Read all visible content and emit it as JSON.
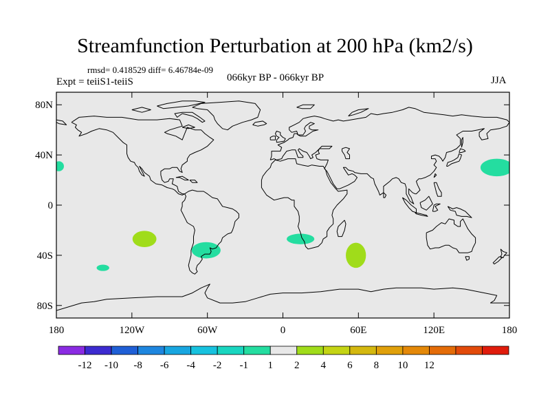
{
  "header": {
    "title": "Streamfunction Perturbation at 200 hPa (km2/s)",
    "stats": "rmsd= 0.418529  diff= 6.46784e-09",
    "experiment": "Expt = teiiS1-teiiS",
    "period": "066kyr BP - 066kyr BP",
    "season": "JJA"
  },
  "chart_data": {
    "type": "heatmap",
    "projection": "cylindrical-equidistant",
    "title": "Streamfunction Perturbation at 200 hPa (km2/s)",
    "xlim": [
      -180,
      180
    ],
    "ylim": [
      -90,
      90
    ],
    "x_ticks": [
      {
        "value": -180,
        "label": "180"
      },
      {
        "value": -120,
        "label": "120W"
      },
      {
        "value": -60,
        "label": "60W"
      },
      {
        "value": 0,
        "label": "0"
      },
      {
        "value": 60,
        "label": "60E"
      },
      {
        "value": 120,
        "label": "120E"
      },
      {
        "value": 180,
        "label": "180"
      }
    ],
    "y_ticks": [
      {
        "value": 80,
        "label": "80N"
      },
      {
        "value": 40,
        "label": "40N"
      },
      {
        "value": 0,
        "label": "0"
      },
      {
        "value": -40,
        "label": "40S"
      },
      {
        "value": -80,
        "label": "80S"
      }
    ],
    "background_color": "#e8e8e8",
    "colorbar": {
      "colors": [
        "#8a2be2",
        "#3c2bd0",
        "#1f5fd6",
        "#1e86df",
        "#18a6e0",
        "#17c2df",
        "#19d6c0",
        "#24dda0",
        "#e8e8e8",
        "#a0dc1a",
        "#c4d414",
        "#d4b80f",
        "#e0a00a",
        "#e48808",
        "#e46c08",
        "#e24a0a",
        "#e01c0c"
      ],
      "labels": [
        "-12",
        "-10",
        "-8",
        "-6",
        "-4",
        "-2",
        "-1",
        "1",
        "2",
        "4",
        "6",
        "8",
        "10",
        "12"
      ]
    },
    "anomalies": [
      {
        "lon": -110,
        "lat": -27,
        "rlon": 9.5,
        "rlat": 6.5,
        "level": "1 to 2",
        "color": "#a0dc1a"
      },
      {
        "lon": -143,
        "lat": -50,
        "rlon": 5,
        "rlat": 2.5,
        "level": "-2 to -1",
        "color": "#24dda0"
      },
      {
        "lon": -61,
        "lat": -36,
        "rlon": 11.5,
        "rlat": 6.5,
        "level": "-2 to -1",
        "color": "#24dda0"
      },
      {
        "lon": 14,
        "lat": -27,
        "rlon": 11,
        "rlat": 4.2,
        "level": "-2 to -1",
        "color": "#24dda0"
      },
      {
        "lon": 58,
        "lat": -40,
        "rlon": 8,
        "rlat": 10,
        "level": "1 to 2",
        "color": "#a0dc1a"
      },
      {
        "lon": 170,
        "lat": 30,
        "rlon": 13,
        "rlat": 7,
        "level": "-2 to -1",
        "color": "#24dda0"
      },
      {
        "lon": -178,
        "lat": 31,
        "rlon": 4,
        "rlat": 4,
        "level": "-2 to -1",
        "color": "#24dda0"
      }
    ]
  }
}
